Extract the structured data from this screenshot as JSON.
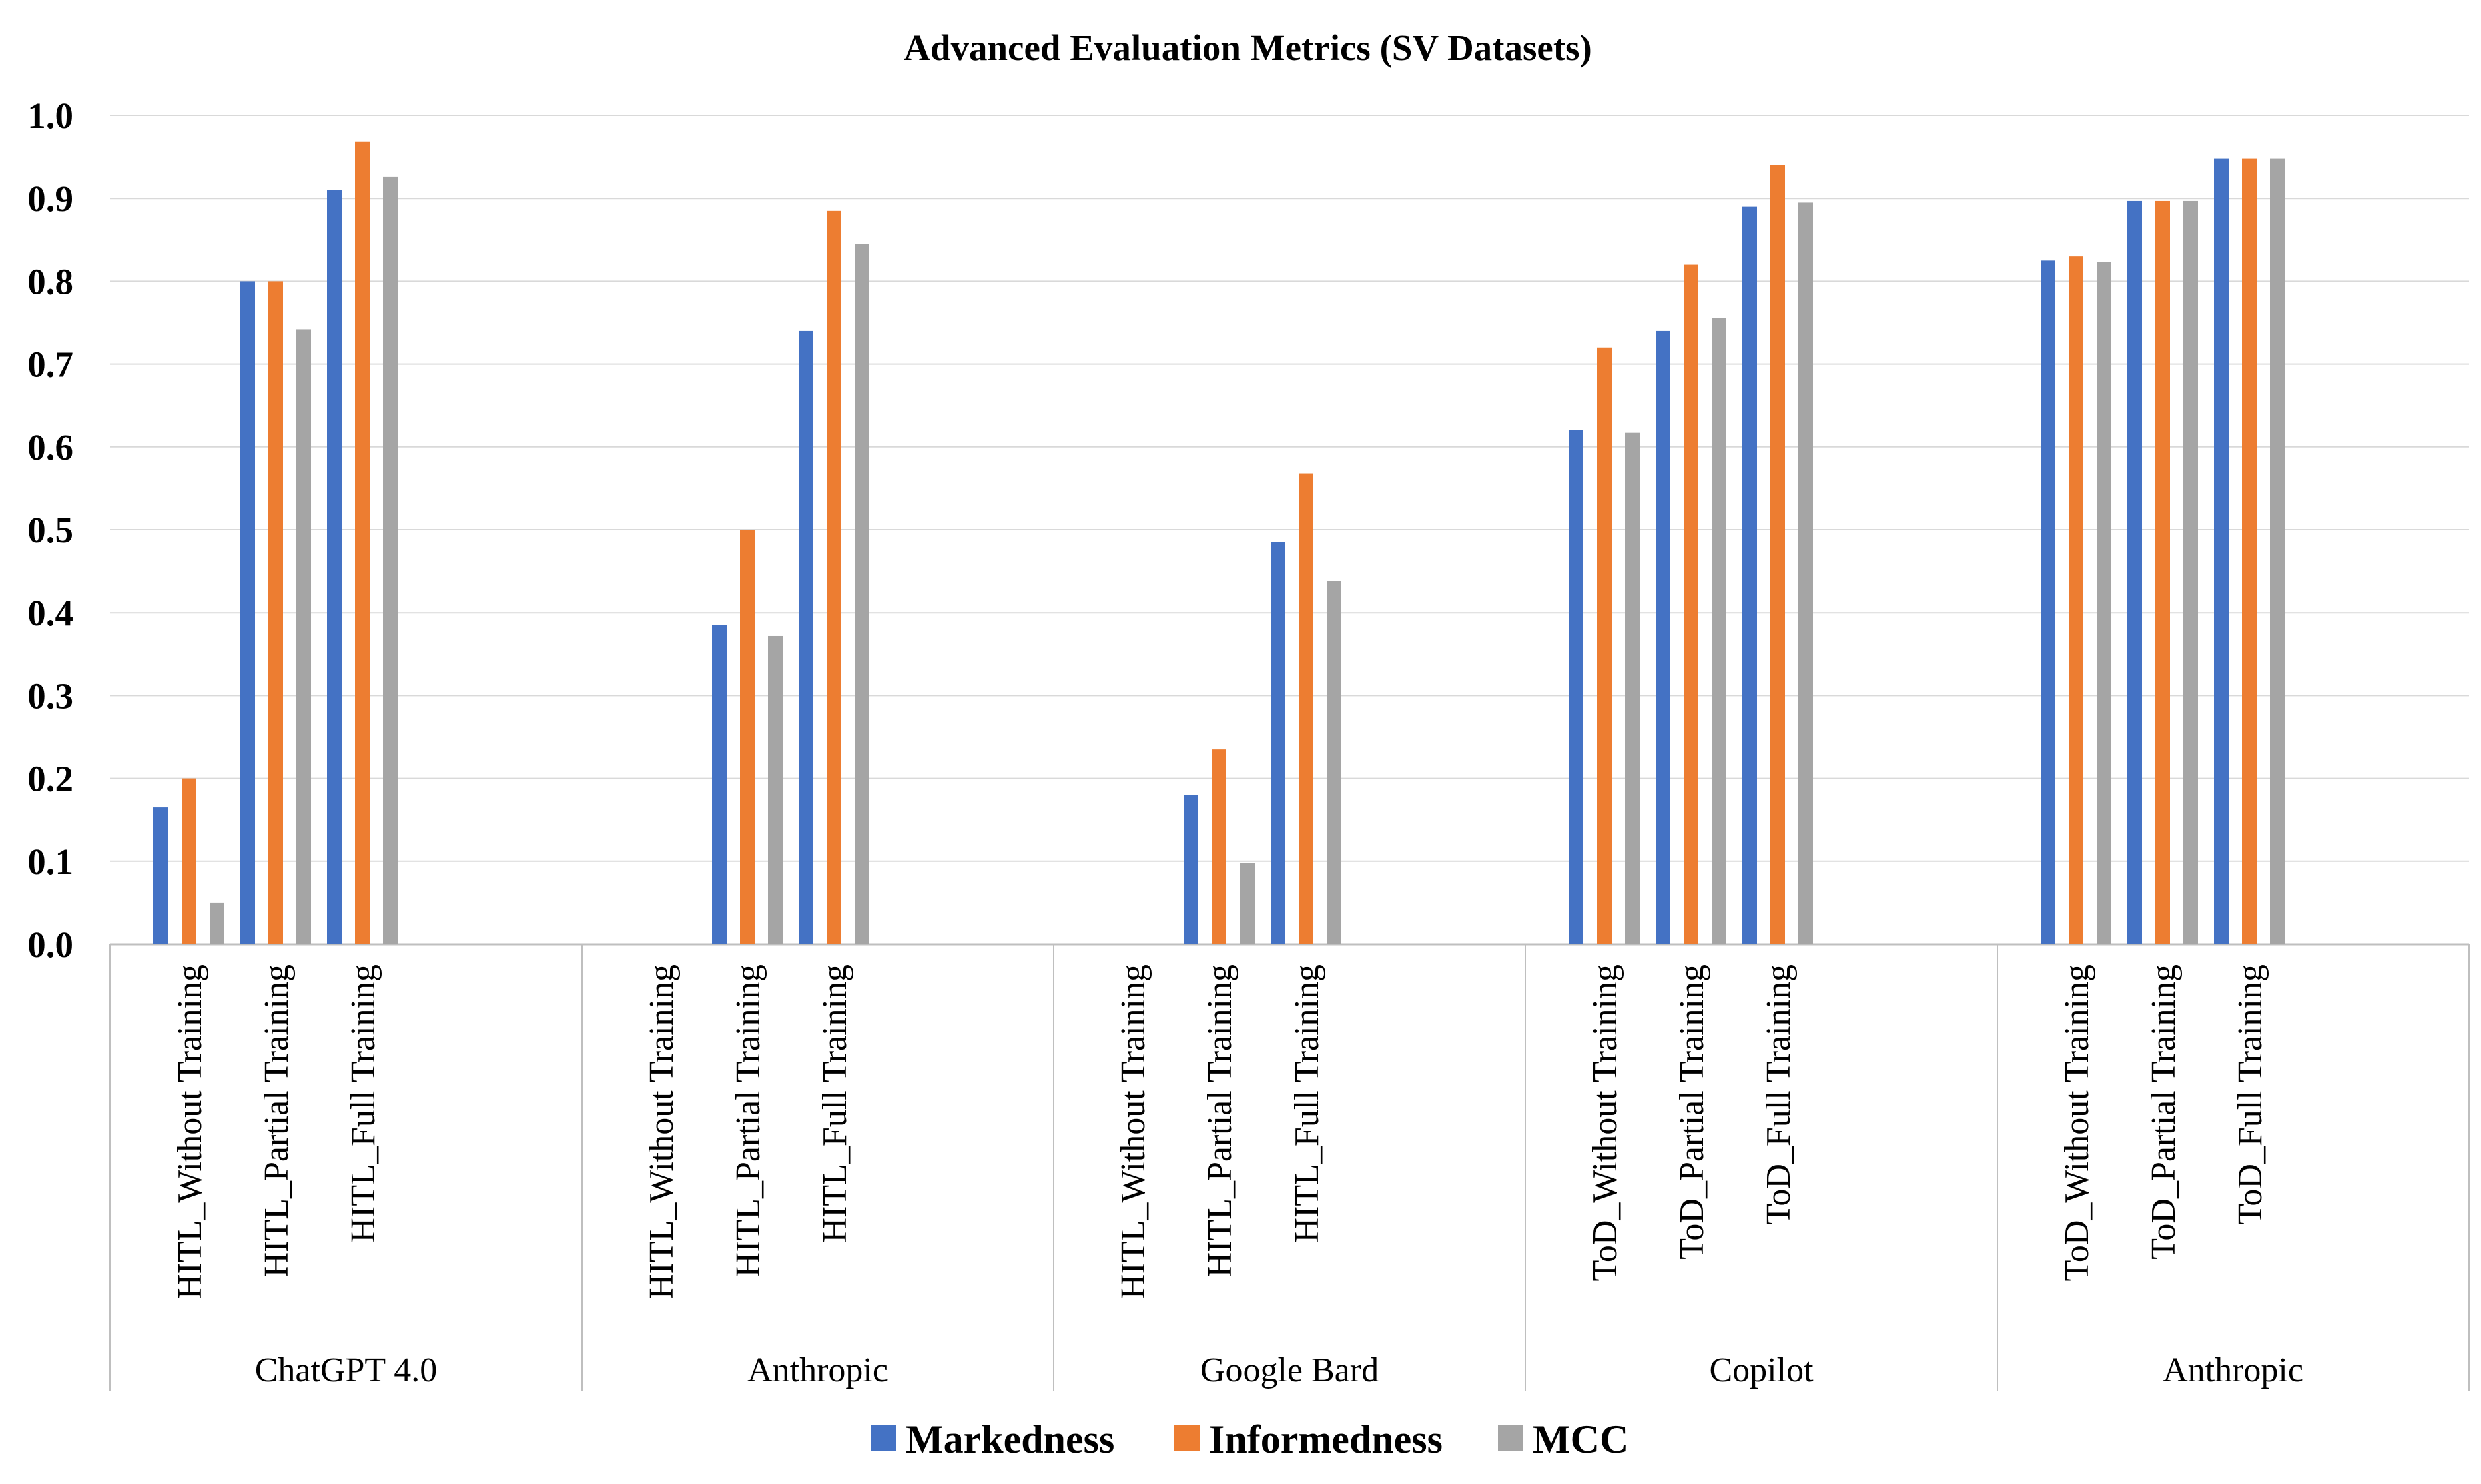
{
  "chart_data": {
    "type": "bar",
    "title": "Advanced Evaluation Metrics (SV Datasets)",
    "xlabel": "",
    "ylabel": "",
    "ylim": [
      0,
      1.0
    ],
    "yticks": [
      "0.0",
      "0.1",
      "0.2",
      "0.3",
      "0.4",
      "0.5",
      "0.6",
      "0.7",
      "0.8",
      "0.9",
      "1.0"
    ],
    "grid": true,
    "legend_position": "bottom",
    "groups": [
      {
        "label": "ChatGPT 4.0",
        "categories": [
          "HITL_Without Training",
          "HITL_Partial Training",
          "HITL_Full Training"
        ]
      },
      {
        "label": "Anthropic",
        "categories": [
          "HITL_Without Training",
          "HITL_Partial Training",
          "HITL_Full Training"
        ]
      },
      {
        "label": "Google Bard",
        "categories": [
          "HITL_Without Training",
          "HITL_Partial Training",
          "HITL_Full Training"
        ]
      },
      {
        "label": "Copilot",
        "categories": [
          "ToD_Without Training",
          "ToD_Partial Training",
          "ToD_Full Training"
        ]
      },
      {
        "label": "Anthropic",
        "categories": [
          "ToD_Without Training",
          "ToD_Partial Training",
          "ToD_Full Training"
        ]
      }
    ],
    "series": [
      {
        "name": "Markedness",
        "color": "#4472C4",
        "values": [
          0.165,
          0.8,
          0.91,
          null,
          0.385,
          0.74,
          null,
          0.18,
          0.485,
          0.62,
          0.74,
          0.89,
          0.825,
          0.897,
          0.948
        ]
      },
      {
        "name": "Informedness",
        "color": "#ED7D31",
        "values": [
          0.2,
          0.8,
          0.968,
          null,
          0.5,
          0.885,
          null,
          0.235,
          0.568,
          0.72,
          0.82,
          0.94,
          0.83,
          0.897,
          0.948
        ]
      },
      {
        "name": "MCC",
        "color": "#A5A5A5",
        "values": [
          0.05,
          0.742,
          0.926,
          null,
          0.372,
          0.845,
          null,
          0.098,
          0.438,
          0.617,
          0.756,
          0.895,
          0.823,
          0.897,
          0.948
        ]
      }
    ]
  }
}
